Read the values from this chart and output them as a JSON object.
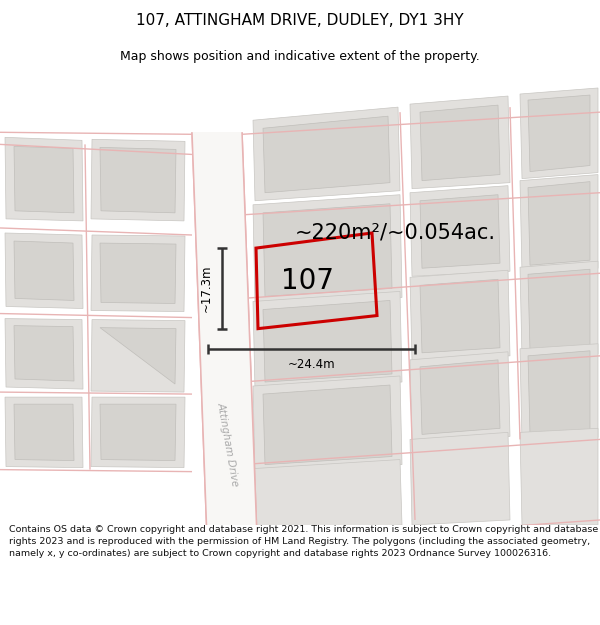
{
  "title": "107, ATTINGHAM DRIVE, DUDLEY, DY1 3HY",
  "subtitle": "Map shows position and indicative extent of the property.",
  "area_text": "~220m²/~0.054ac.",
  "label_107": "107",
  "dim_width": "~24.4m",
  "dim_height": "~17.3m",
  "road_label": "Attingham Drive",
  "footer": "Contains OS data © Crown copyright and database right 2021. This information is subject to Crown copyright and database rights 2023 and is reproduced with the permission of HM Land Registry. The polygons (including the associated geometry, namely x, y co-ordinates) are subject to Crown copyright and database rights 2023 Ordnance Survey 100026316.",
  "map_bg": "#f2f0ee",
  "road_fill": "#f8f7f5",
  "block_fill": "#e2e0dd",
  "block_inner": "#d5d3cf",
  "pink": "#e8b4b4",
  "red": "#cc0000",
  "dim_color": "#333333",
  "road_label_color": "#aaaaaa",
  "title_size": 11,
  "subtitle_size": 9,
  "footer_size": 6.8,
  "area_text_size": 15,
  "label_107_size": 20,
  "dim_text_size": 8.5,
  "road_label_size": 7.5
}
